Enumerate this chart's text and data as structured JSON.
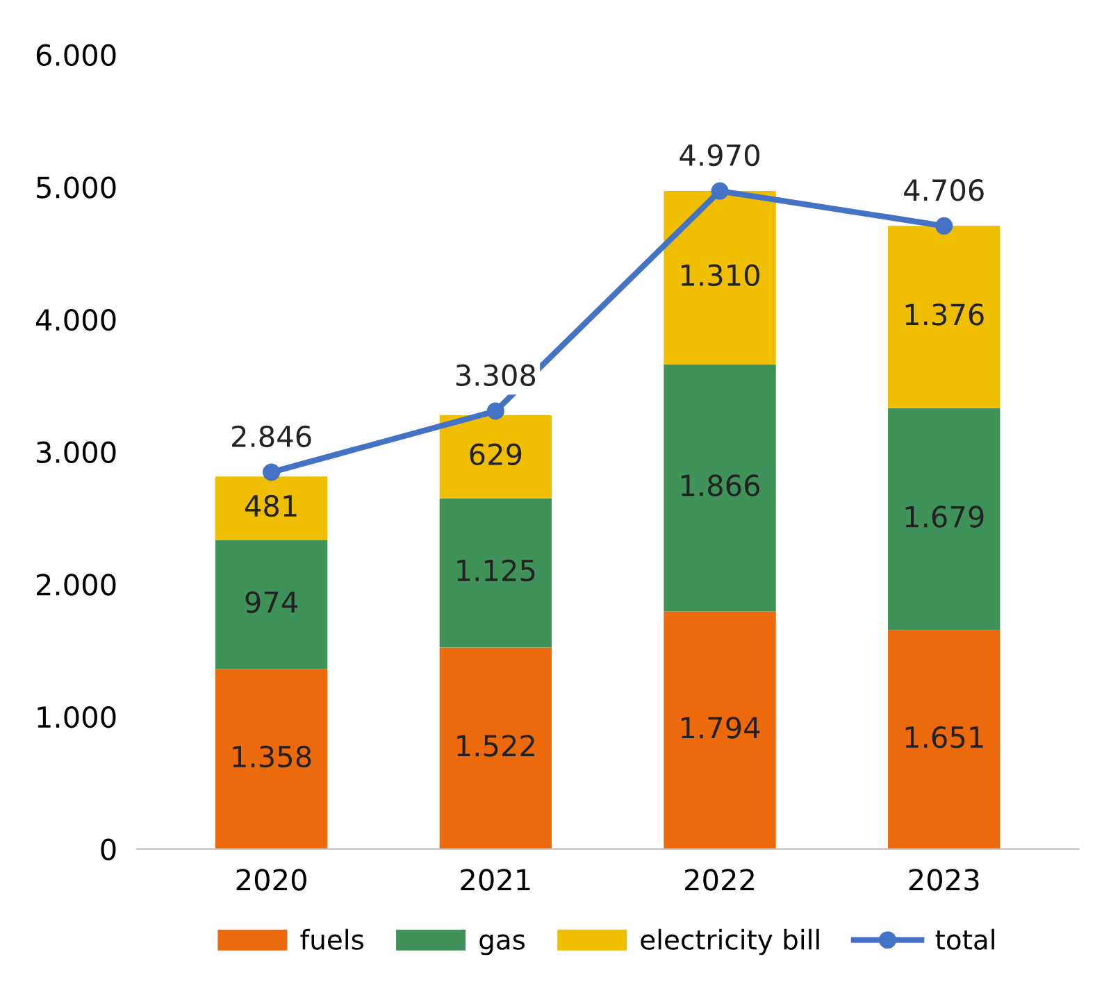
{
  "chart_data": {
    "type": "bar",
    "stacked": true,
    "categories": [
      "2020",
      "2021",
      "2022",
      "2023"
    ],
    "series": [
      {
        "name": "fuels",
        "color": "#ed6a0c",
        "values": [
          1358,
          1522,
          1794,
          1651
        ],
        "value_labels": [
          "1.358",
          "1.522",
          "1.794",
          "1.651"
        ]
      },
      {
        "name": "gas",
        "color": "#3f935a",
        "values": [
          974,
          1125,
          1866,
          1679
        ],
        "value_labels": [
          "974",
          "1.125",
          "1.866",
          "1.679"
        ]
      },
      {
        "name": "electricity bill",
        "color": "#f0be00",
        "values": [
          481,
          629,
          1310,
          1376
        ],
        "value_labels": [
          "481",
          "629",
          "1.310",
          "1.376"
        ]
      },
      {
        "name": "total",
        "type": "line",
        "color": "#4472c4",
        "marker": "circle",
        "values": [
          2846,
          3308,
          4970,
          4706
        ],
        "value_labels": [
          "2.846",
          "3.308",
          "4.970",
          "4.706"
        ]
      }
    ],
    "ylim": [
      0,
      6000
    ],
    "yticks": [
      0,
      {
        "value": 1000,
        "label": "1.000"
      },
      {
        "value": 2000,
        "label": "2.000"
      },
      {
        "value": 3000,
        "label": "3.000"
      },
      {
        "value": 4000,
        "label": "4.000"
      },
      {
        "value": 5000,
        "label": "5.000"
      },
      {
        "value": 6000,
        "label": "6.000"
      }
    ],
    "grid": false,
    "legend": "bottom"
  }
}
